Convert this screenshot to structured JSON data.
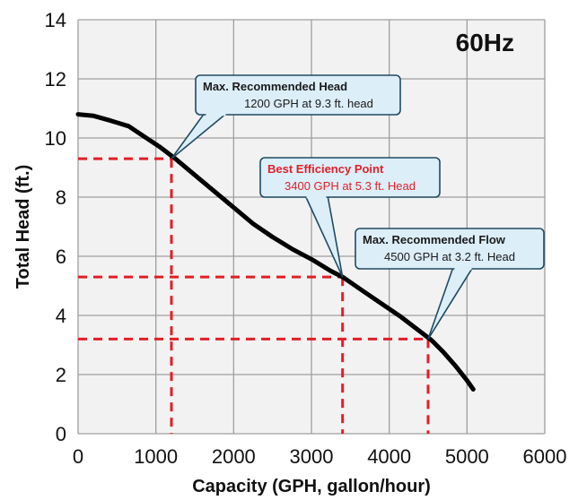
{
  "chart_data": {
    "type": "line",
    "title": "60Hz",
    "xlabel": "Capacity (GPH, gallon/hour)",
    "ylabel": "Total Head (ft.)",
    "xlim": [
      0,
      6000
    ],
    "ylim": [
      0,
      14
    ],
    "x_ticks": [
      "0",
      "1000",
      "2000",
      "3000",
      "4000",
      "5000",
      "6000"
    ],
    "y_ticks": [
      "0",
      "2",
      "4",
      "6",
      "8",
      "10",
      "12",
      "14"
    ],
    "grid": true,
    "series": [
      {
        "x": [
          0,
          200,
          400,
          650,
          850,
          1050,
          1250,
          1500,
          1750,
          2000,
          2250,
          2500,
          2750,
          3000,
          3250,
          3400,
          3650,
          3900,
          4150,
          4400,
          4550,
          4700,
          4850,
          5000,
          5080
        ],
        "y": [
          10.8,
          10.75,
          10.6,
          10.4,
          10.05,
          9.7,
          9.3,
          8.75,
          8.2,
          7.65,
          7.1,
          6.65,
          6.25,
          5.9,
          5.5,
          5.3,
          4.85,
          4.4,
          3.95,
          3.45,
          3.15,
          2.75,
          2.3,
          1.8,
          1.5
        ]
      }
    ],
    "reference_points": [
      {
        "x": 1200,
        "y": 9.3,
        "color": "#e41e26",
        "style": "dashed"
      },
      {
        "x": 3400,
        "y": 5.3,
        "color": "#e41e26",
        "style": "dashed"
      },
      {
        "x": 4500,
        "y": 3.2,
        "color": "#e41e26",
        "style": "dashed"
      }
    ],
    "annotations": [
      {
        "title": "Max. Recommended Head",
        "text": "1200 GPH at 9.3 ft. head",
        "point": [
          1200,
          9.3
        ],
        "red": false
      },
      {
        "title": "Best Efficiency Point",
        "text": "3400 GPH at 5.3 ft. Head",
        "point": [
          3400,
          5.3
        ],
        "red": true
      },
      {
        "title": "Max. Recommended Flow",
        "text": "4500 GPH at 3.2 ft. Head",
        "point": [
          4500,
          3.2
        ],
        "red": false
      }
    ],
    "colors": {
      "curve": "#000000",
      "reference": "#e41e26",
      "callout_fill": "#dceef8",
      "callout_border": "#1f4a63",
      "grid": "#9e9e9e",
      "plot_bg": "#f2f2f2"
    }
  }
}
